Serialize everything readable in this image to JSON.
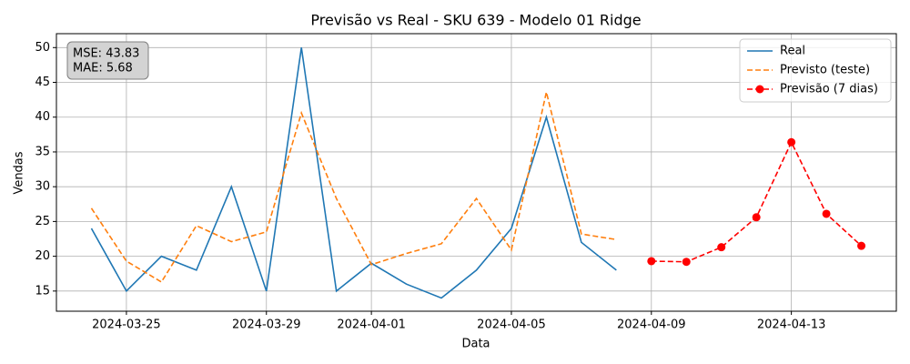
{
  "chart_data": {
    "type": "line",
    "title": "Previsão vs Real - SKU 639 - Modelo 01 Ridge",
    "x_label": "Data",
    "y_label": "Vendas",
    "xlim": [
      "2024-03-23",
      "2024-04-16"
    ],
    "xticks": [
      "2024-03-25",
      "2024-03-29",
      "2024-04-01",
      "2024-04-05",
      "2024-04-09",
      "2024-04-13"
    ],
    "ylim": [
      12.1,
      52
    ],
    "yticks": [
      15,
      20,
      25,
      30,
      35,
      40,
      45,
      50
    ],
    "grid": true,
    "legend": "upper right",
    "annotation": [
      "MSE: 43.83",
      "MAE: 5.68"
    ],
    "series": [
      {
        "name": "Real",
        "color": "#1f77b4",
        "linestyle": "solid",
        "x": [
          "2024-03-24",
          "2024-03-25",
          "2024-03-26",
          "2024-03-27",
          "2024-03-28",
          "2024-03-29",
          "2024-03-30",
          "2024-03-31",
          "2024-04-01",
          "2024-04-02",
          "2024-04-03",
          "2024-04-04",
          "2024-04-05",
          "2024-04-06",
          "2024-04-07",
          "2024-04-08"
        ],
        "values": [
          24,
          15,
          20,
          18,
          30,
          15,
          50,
          15,
          19,
          16,
          14,
          18,
          24,
          40,
          22,
          18
        ]
      },
      {
        "name": "Previsto (teste)",
        "color": "#ff7f0e",
        "linestyle": "dashed",
        "x": [
          "2024-03-24",
          "2024-03-25",
          "2024-03-26",
          "2024-03-27",
          "2024-03-28",
          "2024-03-29",
          "2024-03-30",
          "2024-03-31",
          "2024-04-01",
          "2024-04-02",
          "2024-04-03",
          "2024-04-04",
          "2024-04-05",
          "2024-04-06",
          "2024-04-07",
          "2024-04-08"
        ],
        "values": [
          26.9,
          19.3,
          16.3,
          24.4,
          22.1,
          23.5,
          40.6,
          28.3,
          18.8,
          20.4,
          21.8,
          28.3,
          20.9,
          43.6,
          23.2,
          22.4
        ]
      },
      {
        "name": "Previsão (7 dias)",
        "color": "#ff0000",
        "linestyle": "dashed",
        "marker": "o",
        "x": [
          "2024-04-09",
          "2024-04-10",
          "2024-04-11",
          "2024-04-12",
          "2024-04-13",
          "2024-04-14",
          "2024-04-15"
        ],
        "values": [
          19.3,
          19.2,
          21.3,
          25.6,
          36.4,
          26.1,
          21.5
        ]
      }
    ]
  }
}
